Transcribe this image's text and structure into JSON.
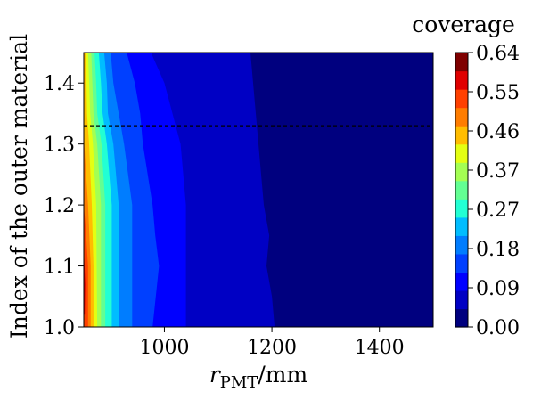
{
  "chart_data": {
    "type": "heatmap",
    "title": "",
    "xlabel": {
      "math": "r",
      "sub": "PMT",
      "rest": "/mm"
    },
    "ylabel": "Index of the outer material",
    "xlim": [
      850,
      1500
    ],
    "ylim": [
      1.0,
      1.45
    ],
    "xticks": [
      1000,
      1200,
      1400
    ],
    "yticks": [
      1.0,
      1.1,
      1.2,
      1.3,
      1.4
    ],
    "colorbar": {
      "label": "coverage",
      "min": 0.0,
      "max": 0.64,
      "ticks": [
        "0.00",
        "0.09",
        "0.18",
        "0.27",
        "0.37",
        "0.46",
        "0.55",
        "0.64"
      ],
      "levels": 14,
      "colors": [
        "#00007f",
        "#0000c4",
        "#0000ff",
        "#0040ff",
        "#007dff",
        "#00bdff",
        "#22ffd4",
        "#63ff93",
        "#a4ff53",
        "#e4ff12",
        "#ffbd00",
        "#ff7d00",
        "#ff4000",
        "#e00000",
        "#7f0000"
      ]
    },
    "reference_line": {
      "y": 1.33,
      "style": "dashed",
      "color": "#000000"
    },
    "contour_boundaries": [
      {
        "level": 0.046,
        "x_at_y": [
          [
            1.0,
            1205
          ],
          [
            1.05,
            1200
          ],
          [
            1.1,
            1190
          ],
          [
            1.15,
            1195
          ],
          [
            1.2,
            1185
          ],
          [
            1.25,
            1180
          ],
          [
            1.3,
            1175
          ],
          [
            1.35,
            1170
          ],
          [
            1.4,
            1165
          ],
          [
            1.45,
            1160
          ]
        ]
      },
      {
        "level": 0.091,
        "x_at_y": [
          [
            1.0,
            1040
          ],
          [
            1.1,
            1040
          ],
          [
            1.2,
            1040
          ],
          [
            1.3,
            1030
          ],
          [
            1.35,
            1015
          ],
          [
            1.4,
            1000
          ],
          [
            1.45,
            975
          ]
        ]
      },
      {
        "level": 0.137,
        "x_at_y": [
          [
            1.0,
            978
          ],
          [
            1.1,
            990
          ],
          [
            1.15,
            983
          ],
          [
            1.2,
            978
          ],
          [
            1.3,
            960
          ],
          [
            1.35,
            955
          ],
          [
            1.4,
            945
          ],
          [
            1.45,
            930
          ]
        ]
      },
      {
        "level": 0.183,
        "x_at_y": [
          [
            1.0,
            940
          ],
          [
            1.2,
            940
          ],
          [
            1.3,
            925
          ],
          [
            1.35,
            915
          ],
          [
            1.4,
            905
          ],
          [
            1.45,
            900
          ]
        ]
      },
      {
        "level": 0.229,
        "x_at_y": [
          [
            1.0,
            915
          ],
          [
            1.2,
            915
          ],
          [
            1.3,
            905
          ],
          [
            1.35,
            895
          ],
          [
            1.4,
            893
          ],
          [
            1.45,
            888
          ]
        ]
      },
      {
        "level": 0.274,
        "x_at_y": [
          [
            1.0,
            902
          ],
          [
            1.2,
            902
          ],
          [
            1.3,
            893
          ],
          [
            1.35,
            885
          ],
          [
            1.4,
            882
          ],
          [
            1.45,
            878
          ]
        ]
      },
      {
        "level": 0.32,
        "x_at_y": [
          [
            1.0,
            890
          ],
          [
            1.2,
            890
          ],
          [
            1.3,
            883
          ],
          [
            1.35,
            875
          ],
          [
            1.4,
            873
          ],
          [
            1.45,
            870
          ]
        ]
      },
      {
        "level": 0.366,
        "x_at_y": [
          [
            1.0,
            882
          ],
          [
            1.2,
            882
          ],
          [
            1.3,
            875
          ],
          [
            1.35,
            868
          ],
          [
            1.4,
            866
          ],
          [
            1.45,
            864
          ]
        ]
      },
      {
        "level": 0.411,
        "x_at_y": [
          [
            1.0,
            875
          ],
          [
            1.2,
            873
          ],
          [
            1.3,
            867
          ],
          [
            1.35,
            862
          ],
          [
            1.4,
            860
          ],
          [
            1.45,
            858
          ]
        ]
      },
      {
        "level": 0.457,
        "x_at_y": [
          [
            1.0,
            868
          ],
          [
            1.1,
            868
          ],
          [
            1.2,
            865
          ],
          [
            1.3,
            860
          ],
          [
            1.35,
            856
          ],
          [
            1.4,
            855
          ],
          [
            1.45,
            854
          ]
        ]
      },
      {
        "level": 0.503,
        "x_at_y": [
          [
            1.0,
            863
          ],
          [
            1.1,
            863
          ],
          [
            1.2,
            858
          ],
          [
            1.27,
            853
          ],
          [
            1.3,
            851
          ],
          [
            1.35,
            850
          ]
        ]
      },
      {
        "level": 0.549,
        "x_at_y": [
          [
            1.0,
            858
          ],
          [
            1.1,
            858
          ],
          [
            1.17,
            853
          ],
          [
            1.2,
            850
          ]
        ]
      },
      {
        "level": 0.594,
        "x_at_y": [
          [
            1.02,
            852
          ],
          [
            1.07,
            853
          ],
          [
            1.13,
            850
          ]
        ]
      }
    ]
  }
}
